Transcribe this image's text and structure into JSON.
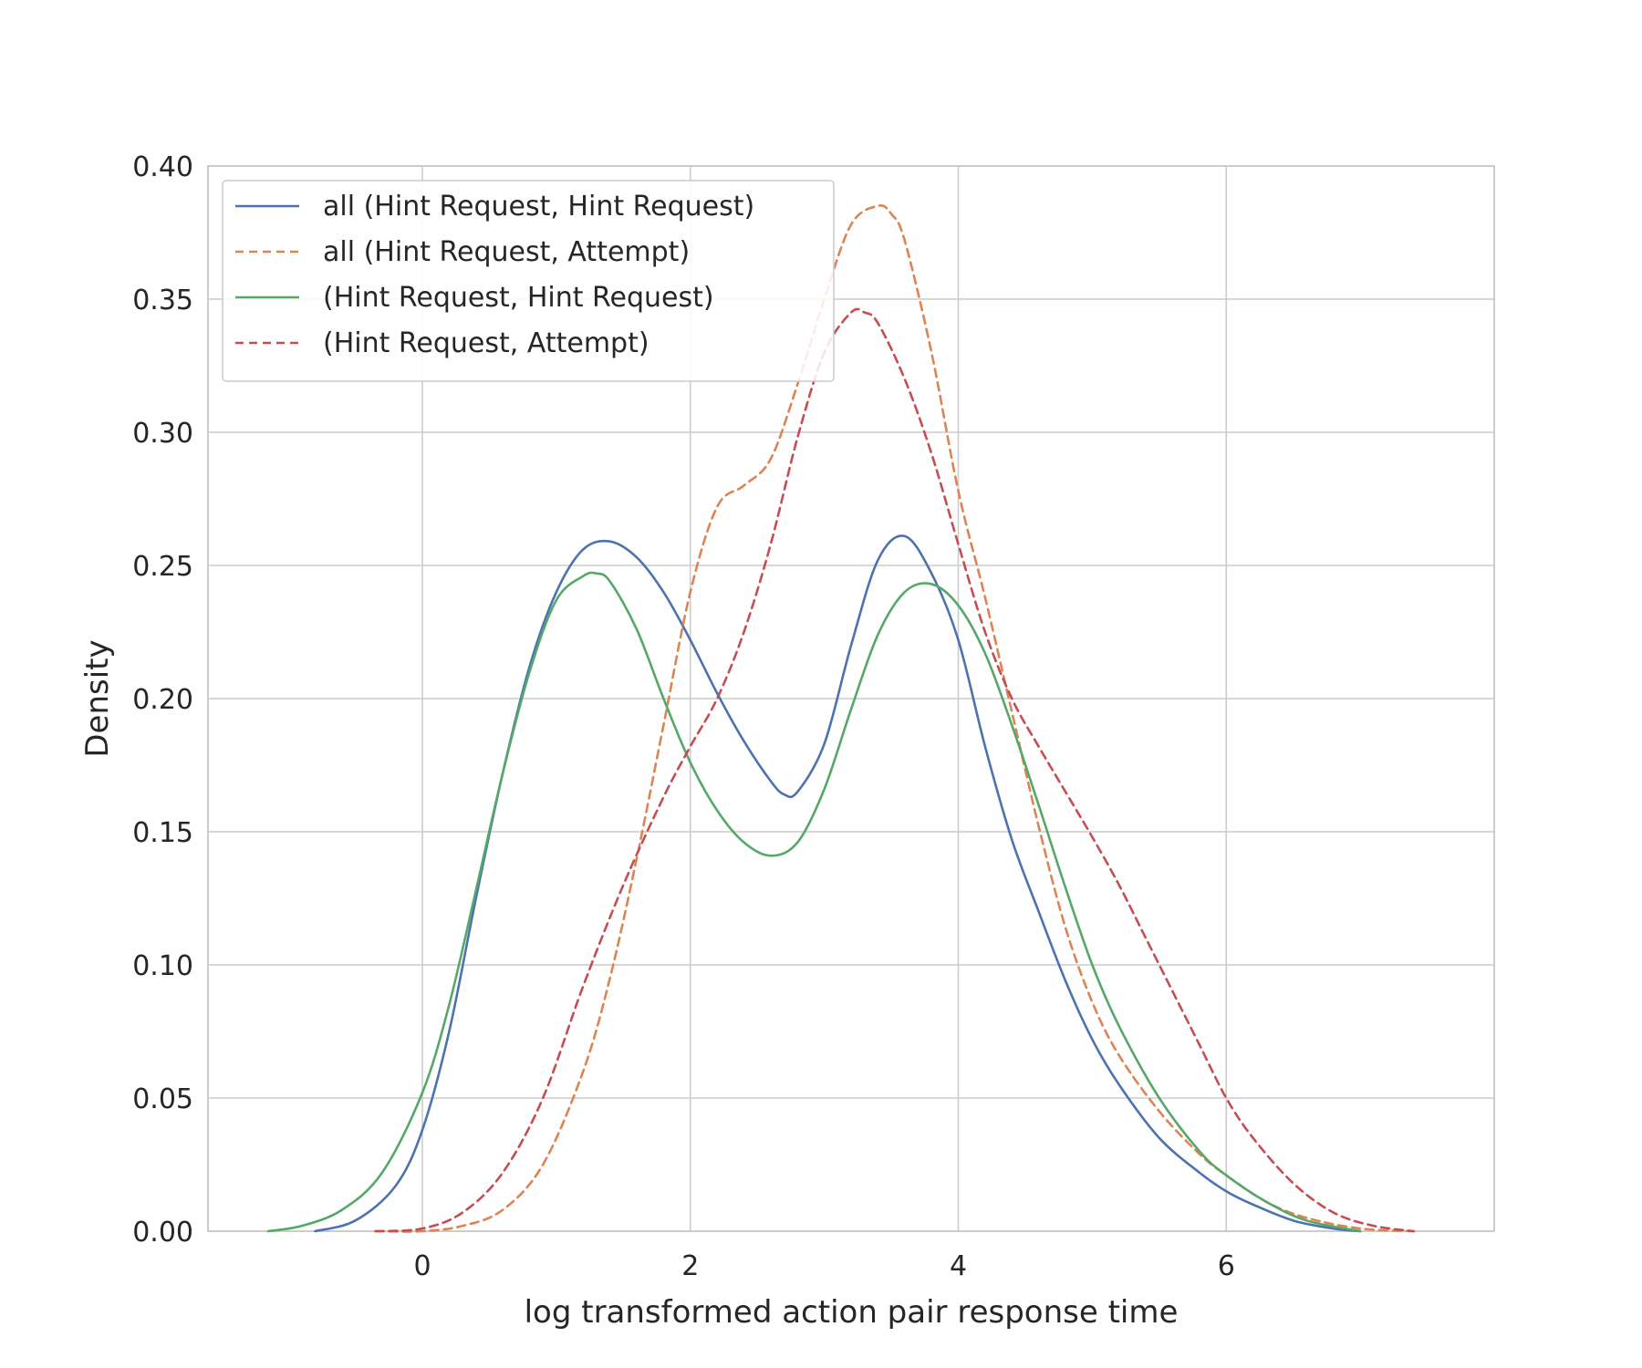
{
  "chart_data": {
    "type": "line",
    "xlabel": "log transformed action pair response time",
    "ylabel": "Density",
    "xlim": [
      -1.6,
      8.0
    ],
    "ylim": [
      0.0,
      0.4
    ],
    "xticks": [
      0,
      2,
      4,
      6
    ],
    "yticks": [
      0.0,
      0.05,
      0.1,
      0.15,
      0.2,
      0.25,
      0.3,
      0.35,
      0.4
    ],
    "xtick_labels": [
      "0",
      "2",
      "4",
      "6"
    ],
    "ytick_labels": [
      "0.00",
      "0.05",
      "0.10",
      "0.15",
      "0.20",
      "0.25",
      "0.30",
      "0.35",
      "0.40"
    ],
    "grid": true,
    "legend_position": "top-left",
    "series": [
      {
        "name": "all (Hint Request, Hint Request)",
        "color": "#4c72b0",
        "dash": "solid",
        "x": [
          -0.8,
          -0.5,
          -0.2,
          0.0,
          0.2,
          0.4,
          0.6,
          0.8,
          1.0,
          1.2,
          1.4,
          1.6,
          1.8,
          2.0,
          2.2,
          2.4,
          2.6,
          2.7,
          2.8,
          3.0,
          3.2,
          3.4,
          3.6,
          3.8,
          4.0,
          4.2,
          4.4,
          4.6,
          4.8,
          5.0,
          5.2,
          5.5,
          5.8,
          6.0,
          6.2,
          6.5,
          6.8,
          7.0
        ],
        "y": [
          0.0,
          0.004,
          0.017,
          0.038,
          0.075,
          0.125,
          0.172,
          0.212,
          0.24,
          0.256,
          0.259,
          0.253,
          0.24,
          0.222,
          0.202,
          0.184,
          0.169,
          0.164,
          0.165,
          0.183,
          0.22,
          0.252,
          0.261,
          0.247,
          0.222,
          0.182,
          0.147,
          0.12,
          0.094,
          0.072,
          0.055,
          0.035,
          0.022,
          0.015,
          0.01,
          0.004,
          0.001,
          0.0
        ]
      },
      {
        "name": "all (Hint Request, Attempt)",
        "color": "#dd8452",
        "dash": "dashed",
        "x": [
          -0.35,
          0.0,
          0.3,
          0.6,
          0.9,
          1.2,
          1.4,
          1.6,
          1.8,
          2.0,
          2.2,
          2.4,
          2.6,
          2.8,
          3.0,
          3.2,
          3.4,
          3.5,
          3.6,
          3.8,
          4.0,
          4.2,
          4.4,
          4.6,
          4.8,
          5.0,
          5.2,
          5.5,
          5.8,
          6.0,
          6.3,
          6.6,
          7.0,
          7.4
        ],
        "y": [
          0.0,
          0.0,
          0.002,
          0.008,
          0.025,
          0.06,
          0.095,
          0.14,
          0.19,
          0.24,
          0.272,
          0.28,
          0.29,
          0.318,
          0.35,
          0.378,
          0.385,
          0.382,
          0.372,
          0.33,
          0.278,
          0.238,
          0.195,
          0.152,
          0.114,
          0.086,
          0.066,
          0.045,
          0.029,
          0.021,
          0.011,
          0.005,
          0.001,
          0.0
        ]
      },
      {
        "name": "(Hint Request, Hint Request)",
        "color": "#55a868",
        "dash": "solid",
        "x": [
          -1.15,
          -0.9,
          -0.6,
          -0.3,
          0.0,
          0.2,
          0.4,
          0.6,
          0.8,
          1.0,
          1.2,
          1.3,
          1.4,
          1.6,
          1.8,
          2.0,
          2.2,
          2.4,
          2.6,
          2.8,
          3.0,
          3.2,
          3.4,
          3.6,
          3.8,
          4.0,
          4.2,
          4.4,
          4.6,
          4.8,
          5.0,
          5.2,
          5.5,
          5.8,
          6.0,
          6.3,
          6.6,
          7.0
        ],
        "y": [
          0.0,
          0.002,
          0.008,
          0.022,
          0.052,
          0.085,
          0.128,
          0.172,
          0.21,
          0.237,
          0.246,
          0.247,
          0.244,
          0.226,
          0.2,
          0.176,
          0.158,
          0.146,
          0.141,
          0.146,
          0.166,
          0.196,
          0.224,
          0.24,
          0.243,
          0.235,
          0.217,
          0.19,
          0.16,
          0.129,
          0.1,
          0.077,
          0.05,
          0.03,
          0.021,
          0.011,
          0.004,
          0.0
        ]
      },
      {
        "name": "(Hint Request, Attempt)",
        "color": "#c44e52",
        "dash": "dashed",
        "x": [
          -0.35,
          0.0,
          0.3,
          0.6,
          0.9,
          1.2,
          1.5,
          1.8,
          2.0,
          2.2,
          2.4,
          2.6,
          2.8,
          3.0,
          3.2,
          3.3,
          3.4,
          3.6,
          3.8,
          4.0,
          4.2,
          4.4,
          4.6,
          4.8,
          5.0,
          5.2,
          5.4,
          5.6,
          5.8,
          6.0,
          6.2,
          6.5,
          6.8,
          7.1,
          7.4
        ],
        "y": [
          0.0,
          0.001,
          0.007,
          0.022,
          0.05,
          0.092,
          0.13,
          0.163,
          0.182,
          0.2,
          0.225,
          0.258,
          0.298,
          0.33,
          0.345,
          0.345,
          0.341,
          0.32,
          0.292,
          0.258,
          0.225,
          0.2,
          0.182,
          0.165,
          0.148,
          0.13,
          0.11,
          0.09,
          0.07,
          0.05,
          0.035,
          0.018,
          0.007,
          0.002,
          0.0
        ]
      }
    ]
  }
}
